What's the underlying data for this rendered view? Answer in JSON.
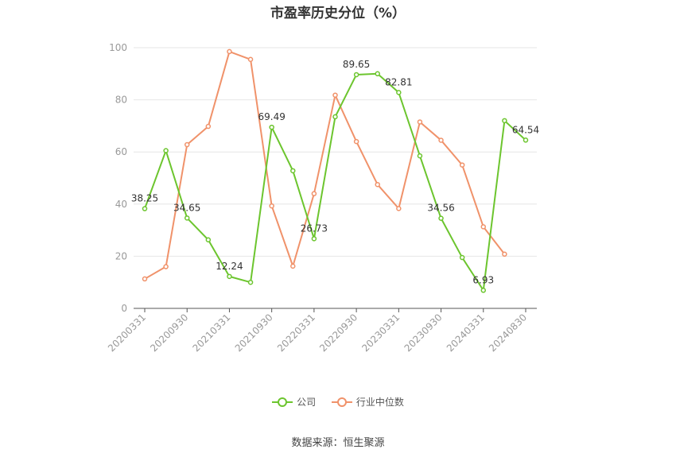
{
  "chart_data": {
    "type": "line",
    "title": "市盈率历史分位（%）",
    "ylim": [
      0,
      100
    ],
    "yticks": [
      0,
      20,
      40,
      60,
      80,
      100
    ],
    "x": [
      "20200331",
      "20200630",
      "20200930",
      "20201231",
      "20210331",
      "20210630",
      "20210930",
      "20211231",
      "20220331",
      "20220630",
      "20220930",
      "20221231",
      "20230331",
      "20230630",
      "20230930",
      "20231231",
      "20240331",
      "20240630",
      "20240830"
    ],
    "xtick_labels": [
      "20200331",
      "20200930",
      "20210331",
      "20210930",
      "20220331",
      "20220930",
      "20230331",
      "20230930",
      "20240331",
      "20240830"
    ],
    "grid": true,
    "legend_position": "bottom",
    "series": [
      {
        "name": "公司",
        "color": "#6cc52e",
        "values": [
          38.25,
          60.5,
          34.65,
          26.3,
          12.24,
          10.0,
          69.49,
          52.8,
          26.73,
          73.5,
          89.65,
          90.0,
          82.81,
          58.5,
          34.56,
          19.5,
          6.93,
          72.0,
          64.54
        ],
        "labels": {
          "0": "38.25",
          "2": "34.65",
          "4": "12.24",
          "6": "69.49",
          "8": "26.73",
          "10": "89.65",
          "12": "82.81",
          "14": "34.56",
          "16": "6.93",
          "18": "64.54"
        }
      },
      {
        "name": "行业中位数",
        "color": "#f0926a",
        "values": [
          11.3,
          16.0,
          62.8,
          69.8,
          98.5,
          95.5,
          39.3,
          16.2,
          44.0,
          81.8,
          64.0,
          47.5,
          38.3,
          71.5,
          64.5,
          55.0,
          31.3,
          20.8,
          null
        ]
      }
    ]
  },
  "source": "数据来源：恒生聚源"
}
